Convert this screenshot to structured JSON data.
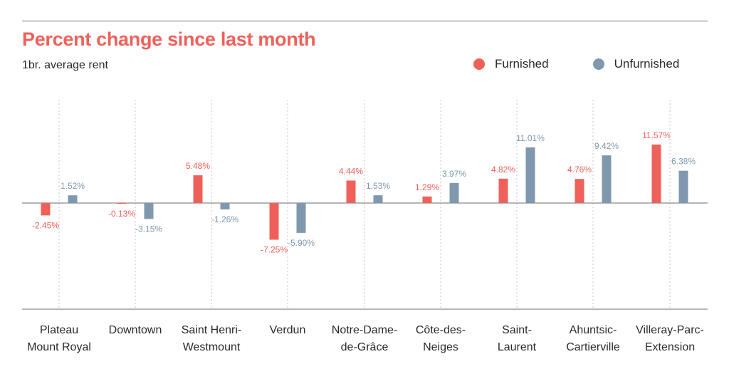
{
  "title": "Percent change since last month",
  "subtitle": "1br. average rent",
  "legend": {
    "furnished": "Furnished",
    "unfurnished": "Unfurnished"
  },
  "colors": {
    "furnished": "#f0605a",
    "unfurnished": "#7f98ad",
    "title": "#f0605a",
    "axis": "#6d6d6d",
    "grid": "#c4c4c4"
  },
  "chart_data": {
    "type": "bar",
    "categories": [
      [
        "Plateau",
        "Mount Royal"
      ],
      [
        "Downtown"
      ],
      [
        "Saint Henri-",
        "Westmount"
      ],
      [
        "Verdun"
      ],
      [
        "Notre-Dame-",
        "de-Grâce"
      ],
      [
        "Côte-des-",
        "Neiges"
      ],
      [
        "Saint-",
        "Laurent"
      ],
      [
        "Ahuntsic-",
        "Cartierville"
      ],
      [
        "Villeray-Parc-",
        "Extension"
      ]
    ],
    "series": [
      {
        "name": "Furnished",
        "values": [
          -2.45,
          -0.13,
          5.48,
          -7.25,
          4.44,
          1.29,
          4.82,
          4.76,
          11.57
        ],
        "labels": [
          "-2.45%",
          "-0.13%",
          "5.48%",
          "-7.25%",
          "4.44%",
          "1.29%",
          "4.82%",
          "4.76%",
          "11.57%"
        ]
      },
      {
        "name": "Unfurnished",
        "values": [
          1.52,
          -3.15,
          -1.26,
          -5.9,
          1.53,
          3.97,
          11.01,
          9.42,
          6.38
        ],
        "labels": [
          "1.52%",
          "-3.15%",
          "-1.26%",
          "-5.90%",
          "1.53%",
          "3.97%",
          "11.01%",
          "9.42%",
          "6.38%"
        ]
      }
    ],
    "ylim": [
      -22,
      20
    ],
    "legend_position": "top-right",
    "grid": "vertical dashed"
  }
}
